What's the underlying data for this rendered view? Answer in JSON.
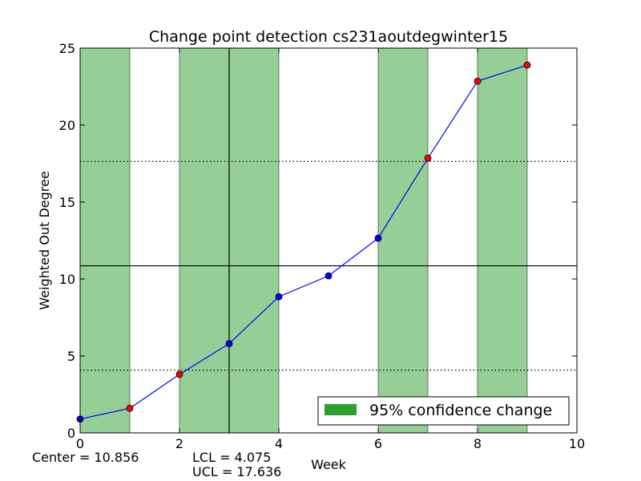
{
  "chart_data": {
    "type": "line",
    "title": "Change point detection cs231aoutdegwinter15",
    "xlabel": "Week",
    "ylabel": "Weighted Out Degree",
    "xlim": [
      0,
      10
    ],
    "ylim": [
      0,
      25
    ],
    "x_ticks": [
      0,
      2,
      4,
      6,
      8,
      10
    ],
    "y_ticks": [
      0,
      5,
      10,
      15,
      20,
      25
    ],
    "series": [
      {
        "name": "Weighted Out Degree",
        "color": "#0000ff",
        "x": [
          0,
          1,
          2,
          3,
          4,
          5,
          6,
          7,
          8,
          9
        ],
        "values": [
          0.9,
          1.6,
          3.8,
          5.8,
          8.85,
          10.2,
          12.65,
          17.85,
          22.85,
          23.9
        ],
        "change_points": [
          false,
          true,
          true,
          false,
          false,
          false,
          false,
          true,
          true,
          true
        ]
      }
    ],
    "change_regions": [
      [
        0,
        1
      ],
      [
        2,
        4
      ],
      [
        6,
        7
      ],
      [
        8,
        9
      ]
    ],
    "change_region_color": "#2ca02c",
    "marker_normal_color": "#0000ff",
    "marker_change_color": "#ff0000",
    "vertical_line_x": 3,
    "center": 10.856,
    "lcl": 4.075,
    "ucl": 17.636,
    "legend": {
      "label": "95% confidence change",
      "placement": "lower-right"
    }
  },
  "footer": {
    "center_label": "Center = 10.856",
    "lcl_label": "LCL = 4.075",
    "ucl_label": "UCL = 17.636"
  }
}
